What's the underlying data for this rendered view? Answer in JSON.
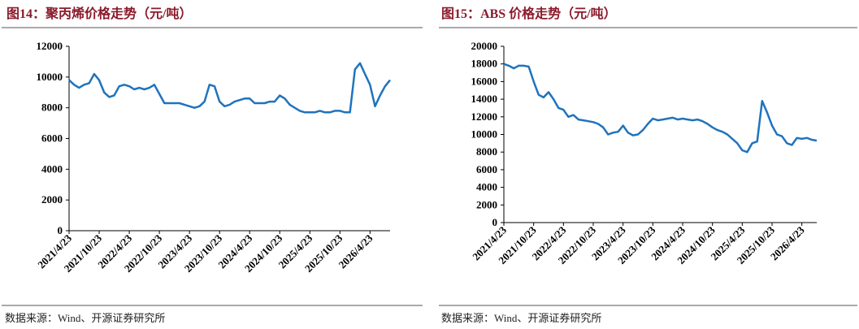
{
  "chart_data": [
    {
      "type": "line",
      "title": "图14：聚丙烯价格走势（元/吨）",
      "source": "数据来源：Wind、开源证券研究所",
      "x": [
        "2021/4/23",
        "2021/5/23",
        "2021/6/23",
        "2021/7/23",
        "2021/8/23",
        "2021/9/23",
        "2021/10/23",
        "2021/11/23",
        "2021/12/23",
        "2022/1/23",
        "2022/2/23",
        "2022/3/23",
        "2022/4/23",
        "2022/5/23",
        "2022/6/23",
        "2022/7/23",
        "2022/8/23",
        "2022/9/23",
        "2022/10/23",
        "2022/11/23",
        "2022/12/23",
        "2023/1/23",
        "2023/2/23",
        "2023/3/23",
        "2023/4/23",
        "2023/5/23",
        "2023/6/23",
        "2023/7/23",
        "2023/8/23",
        "2023/9/23",
        "2023/10/23",
        "2023/11/23",
        "2023/12/23",
        "2024/1/23",
        "2024/2/23",
        "2024/3/23",
        "2024/4/23",
        "2024/5/23",
        "2024/6/23",
        "2024/7/23",
        "2024/8/23",
        "2024/9/23",
        "2024/10/23",
        "2024/11/23",
        "2024/12/23",
        "2025/1/23",
        "2025/2/23",
        "2025/3/23",
        "2025/4/23",
        "2025/5/23",
        "2025/6/23",
        "2025/7/23",
        "2025/8/23",
        "2025/9/23",
        "2025/10/23",
        "2025/11/23",
        "2025/12/23",
        "2026/1/23",
        "2026/2/23",
        "2026/3/23",
        "2026/4/23",
        "2026/5/23",
        "2026/6/23",
        "2026/7/23",
        "2026/8/23"
      ],
      "series": [
        {
          "name": "聚丙烯",
          "color": "#1f73be",
          "values": [
            9800,
            9500,
            9300,
            9500,
            9600,
            10200,
            9800,
            9000,
            8700,
            8800,
            9400,
            9500,
            9400,
            9200,
            9300,
            9200,
            9300,
            9500,
            8900,
            8300,
            8300,
            8300,
            8300,
            8200,
            8100,
            8000,
            8100,
            8400,
            9500,
            9400,
            8400,
            8100,
            8200,
            8400,
            8500,
            8600,
            8600,
            8300,
            8300,
            8300,
            8400,
            8400,
            8800,
            8600,
            8200,
            8000,
            7800,
            7700,
            7700,
            7700,
            7800,
            7700,
            7700,
            7800,
            7800,
            7700,
            7700,
            10500,
            10900,
            10200,
            9500,
            8100,
            8800,
            9400,
            9800
          ]
        }
      ],
      "xticks": [
        "2021/4/23",
        "2021/10/23",
        "2022/4/23",
        "2022/10/23",
        "2023/4/23",
        "2023/10/23",
        "2024/4/23",
        "2024/10/23",
        "2025/4/23",
        "2025/10/23",
        "2026/4/23"
      ],
      "ylim": [
        0,
        12000
      ],
      "yticks": [
        0,
        2000,
        4000,
        6000,
        8000,
        10000,
        12000
      ]
    },
    {
      "type": "line",
      "title": "图15：ABS 价格走势（元/吨）",
      "source": "数据来源：Wind、开源证券研究所",
      "x": [
        "2021/4/23",
        "2021/5/23",
        "2021/6/23",
        "2021/7/23",
        "2021/8/23",
        "2021/9/23",
        "2021/10/23",
        "2021/11/23",
        "2021/12/23",
        "2022/1/23",
        "2022/2/23",
        "2022/3/23",
        "2022/4/23",
        "2022/5/23",
        "2022/6/23",
        "2022/7/23",
        "2022/8/23",
        "2022/9/23",
        "2022/10/23",
        "2022/11/23",
        "2022/12/23",
        "2023/1/23",
        "2023/2/23",
        "2023/3/23",
        "2023/4/23",
        "2023/5/23",
        "2023/6/23",
        "2023/7/23",
        "2023/8/23",
        "2023/9/23",
        "2023/10/23",
        "2023/11/23",
        "2023/12/23",
        "2024/1/23",
        "2024/2/23",
        "2024/3/23",
        "2024/4/23",
        "2024/5/23",
        "2024/6/23",
        "2024/7/23",
        "2024/8/23",
        "2024/9/23",
        "2024/10/23",
        "2024/11/23",
        "2024/12/23",
        "2025/1/23",
        "2025/2/23",
        "2025/3/23",
        "2025/4/23",
        "2025/5/23",
        "2025/6/23",
        "2025/7/23",
        "2025/8/23",
        "2025/9/23",
        "2025/10/23",
        "2025/11/23",
        "2025/12/23",
        "2026/1/23",
        "2026/2/23",
        "2026/3/23",
        "2026/4/23",
        "2026/5/23",
        "2026/6/23",
        "2026/7/23"
      ],
      "series": [
        {
          "name": "ABS",
          "color": "#1f73be",
          "values": [
            18000,
            17800,
            17500,
            17800,
            17800,
            17700,
            16000,
            14500,
            14200,
            14800,
            14000,
            13000,
            12800,
            12000,
            12200,
            11700,
            11600,
            11500,
            11400,
            11200,
            10800,
            10000,
            10200,
            10300,
            11000,
            10200,
            9900,
            10000,
            10500,
            11200,
            11800,
            11600,
            11700,
            11800,
            11900,
            11700,
            11800,
            11700,
            11600,
            11700,
            11500,
            11200,
            10800,
            10500,
            10300,
            10000,
            9500,
            9000,
            8200,
            8000,
            9000,
            9200,
            13800,
            12500,
            11000,
            10000,
            9800,
            9000,
            8800,
            9600,
            9500,
            9600,
            9400,
            9300
          ]
        }
      ],
      "xticks": [
        "2021/4/23",
        "2021/10/23",
        "2022/4/23",
        "2022/10/23",
        "2023/4/23",
        "2023/10/23",
        "2024/4/23",
        "2024/10/23",
        "2025/4/23",
        "2025/10/23",
        "2026/4/23"
      ],
      "ylim": [
        0,
        20000
      ],
      "yticks": [
        0,
        2000,
        4000,
        6000,
        8000,
        10000,
        12000,
        14000,
        16000,
        18000,
        20000
      ]
    }
  ]
}
